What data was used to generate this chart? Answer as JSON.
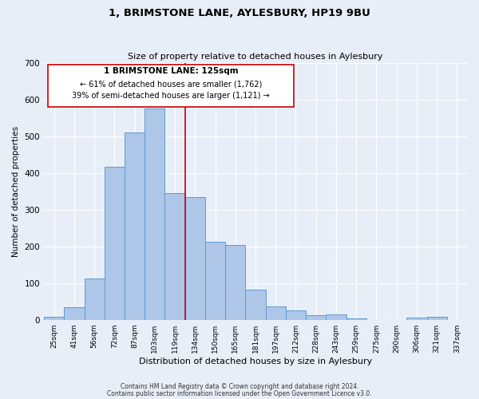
{
  "title": "1, BRIMSTONE LANE, AYLESBURY, HP19 9BU",
  "subtitle": "Size of property relative to detached houses in Aylesbury",
  "xlabel": "Distribution of detached houses by size in Aylesbury",
  "ylabel": "Number of detached properties",
  "bin_labels": [
    "25sqm",
    "41sqm",
    "56sqm",
    "72sqm",
    "87sqm",
    "103sqm",
    "119sqm",
    "134sqm",
    "150sqm",
    "165sqm",
    "181sqm",
    "197sqm",
    "212sqm",
    "228sqm",
    "243sqm",
    "259sqm",
    "275sqm",
    "290sqm",
    "306sqm",
    "321sqm",
    "337sqm"
  ],
  "bar_heights": [
    8,
    35,
    113,
    418,
    510,
    575,
    345,
    335,
    212,
    205,
    83,
    36,
    25,
    13,
    14,
    3,
    0,
    0,
    5,
    7,
    0
  ],
  "bar_color": "#aec6e8",
  "bar_edge_color": "#5b9bd5",
  "background_color": "#e8eef8",
  "ylim": [
    0,
    700
  ],
  "yticks": [
    0,
    100,
    200,
    300,
    400,
    500,
    600,
    700
  ],
  "vline_x_index": 6,
  "vline_color": "#cc0000",
  "annotation_title": "1 BRIMSTONE LANE: 125sqm",
  "annotation_line1": "← 61% of detached houses are smaller (1,762)",
  "annotation_line2": "39% of semi-detached houses are larger (1,121) →",
  "annotation_box_color": "#ffffff",
  "annotation_box_edge": "#cc0000",
  "footer1": "Contains HM Land Registry data © Crown copyright and database right 2024.",
  "footer2": "Contains public sector information licensed under the Open Government Licence v3.0."
}
